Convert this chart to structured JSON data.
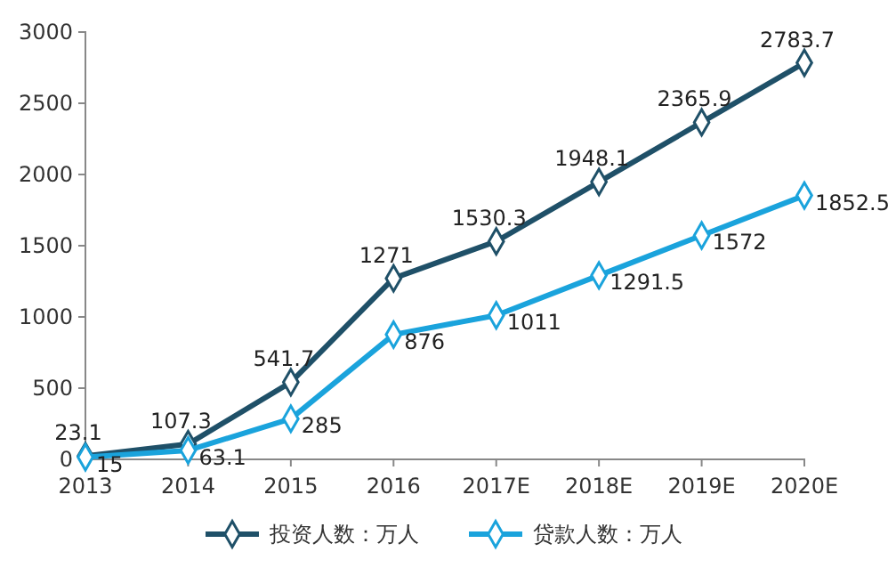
{
  "chart_data": {
    "type": "line",
    "categories": [
      "2013",
      "2014",
      "2015",
      "2016",
      "2017E",
      "2018E",
      "2019E",
      "2020E"
    ],
    "series": [
      {
        "name": "投资人数：万人",
        "color": "#1f5068",
        "values": [
          23.1,
          107.3,
          541.7,
          1271,
          1530.3,
          1948.1,
          2365.9,
          2783.7
        ]
      },
      {
        "name": "贷款人数：万人",
        "color": "#1aa3dc",
        "values": [
          15,
          63.1,
          285,
          876,
          1011,
          1291.5,
          1572,
          1852.5
        ]
      }
    ],
    "ylim": [
      0,
      3000
    ],
    "yticks": [
      0,
      500,
      1000,
      1500,
      2000,
      2500,
      3000
    ],
    "grid": false,
    "legend": "bottom",
    "marker": "diamond",
    "line_style": "solid",
    "data_labels": true
  }
}
